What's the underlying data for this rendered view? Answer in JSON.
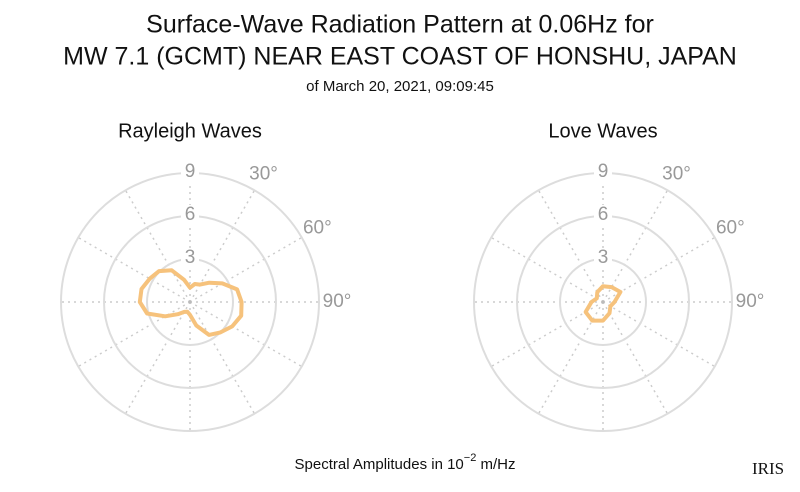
{
  "header": {
    "title": [
      "Surface-Wave Radiation Pattern at 0.06Hz for",
      "MW 7.1 (GCMT) NEAR EAST COAST OF HONSHU, JAPAN"
    ],
    "subtitle": "of March 20, 2021, 09:09:45"
  },
  "footer": {
    "text": "Spectral Amplitudes in 10",
    "exponent": "−2",
    "unit": " m/Hz",
    "logo": "IRIS"
  },
  "chart_data": [
    {
      "type": "polar",
      "title": "Rayleigh Waves",
      "color": "#f6c27c",
      "theta": [
        0,
        15,
        30,
        45,
        60,
        75,
        90,
        105,
        120,
        135,
        150,
        165,
        180,
        195,
        210,
        225,
        240,
        255,
        270,
        285,
        300,
        315,
        330,
        345
      ],
      "values": [
        1.0,
        1.3,
        1.4,
        1.9,
        2.6,
        3.4,
        3.6,
        3.7,
        3.4,
        3.0,
        2.65,
        1.7,
        0.9,
        0.7,
        0.8,
        1.2,
        2.0,
        3.1,
        3.5,
        3.5,
        3.25,
        3.05,
        2.55,
        1.6
      ],
      "rlim": [
        0,
        9
      ],
      "rticks": [
        3,
        6,
        9
      ],
      "angle_ticks": [
        {
          "value": 30,
          "label": "30°"
        },
        {
          "value": 60,
          "label": "60°"
        },
        {
          "value": 90,
          "label": "90°"
        }
      ]
    },
    {
      "type": "polar",
      "title": "Love Waves",
      "color": "#f6c27c",
      "theta": [
        0,
        30,
        60,
        90,
        120,
        150,
        180,
        210,
        240,
        270,
        300,
        330
      ],
      "values": [
        1.1,
        1.2,
        1.4,
        0.8,
        0.6,
        0.9,
        1.3,
        1.5,
        1.4,
        0.8,
        0.5,
        0.8
      ],
      "rlim": [
        0,
        9
      ],
      "rticks": [
        3,
        6,
        9
      ],
      "angle_ticks": [
        {
          "value": 30,
          "label": "30°"
        },
        {
          "value": 60,
          "label": "60°"
        },
        {
          "value": 90,
          "label": "90°"
        }
      ]
    }
  ]
}
